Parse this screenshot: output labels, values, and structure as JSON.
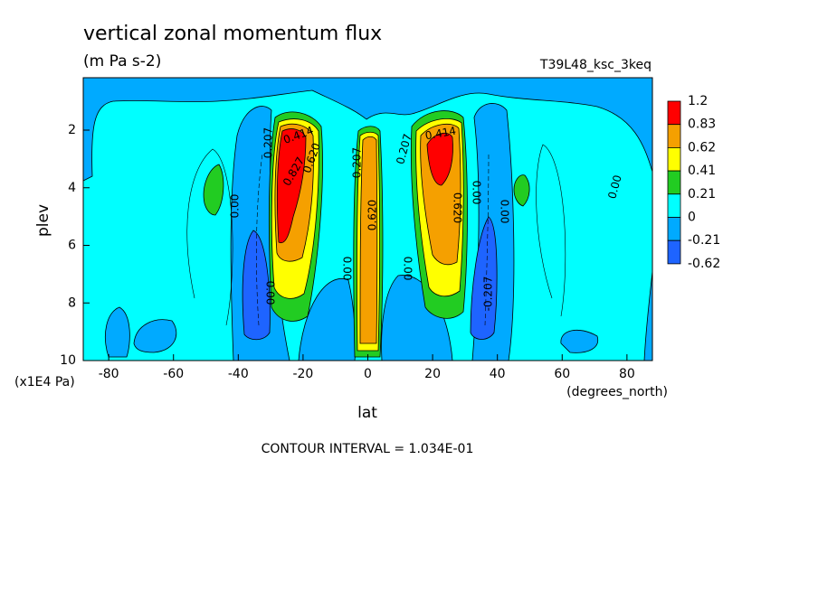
{
  "chart_data": {
    "type": "contour",
    "title": "vertical zonal momentum flux",
    "subtitle": "(m Pa s-2)",
    "dataset": "T39L48_ksc_3keq",
    "x_label": "lat",
    "x_units": "(degrees_north)",
    "y_label": "plev",
    "y_units": "(x1E4 Pa)",
    "footnote": "CONTOUR INTERVAL = 1.034E-01",
    "xlim": [
      -87.86,
      87.86
    ],
    "xticks": [
      -80,
      -60,
      -40,
      -20,
      0,
      20,
      40,
      60,
      80
    ],
    "ylim": [
      10,
      0.18
    ],
    "yticks": [
      2,
      4,
      6,
      8,
      10
    ],
    "colorbar": {
      "levels": [
        1.2,
        0.83,
        0.62,
        0.41,
        0.21,
        0,
        -0.21,
        -0.62
      ],
      "colors": [
        "#ff0000",
        "#f5a000",
        "#ffff00",
        "#22cc22",
        "#00ffff",
        "#00aaff",
        "#1e64ff"
      ]
    },
    "contour_labels": [
      "0.207",
      "0.414",
      "0.827",
      "0.620",
      "0.00",
      "0.207",
      "0.620",
      "0.00",
      "0.00",
      "0.207",
      "0.414",
      "0.620",
      "0.00",
      "0.00",
      "-0.207",
      "0.00",
      "0.00"
    ]
  }
}
